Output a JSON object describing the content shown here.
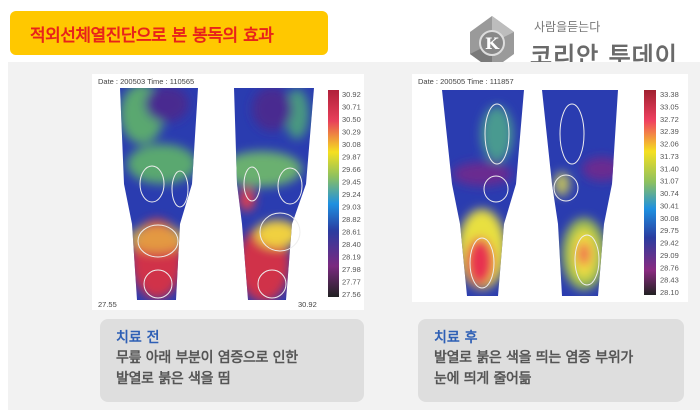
{
  "title": "적외선체열진단으로 본 봉독의 효과",
  "logo": {
    "slogan": "사람을듣는다",
    "name": "코리안 투데이",
    "icon": "k-logo-icon"
  },
  "colors": {
    "title_bg": "#ffc800",
    "title_text": "#e8231a",
    "caption_title": "#2e5fb5"
  },
  "before": {
    "header": "Date : 200503     Time : 110565",
    "scale": [
      "30.92",
      "30.71",
      "30.50",
      "30.29",
      "30.08",
      "29.87",
      "29.66",
      "29.45",
      "29.24",
      "29.03",
      "28.82",
      "28.61",
      "28.40",
      "28.19",
      "27.98",
      "27.77",
      "27.56"
    ],
    "min_label": "27.55",
    "max_label": "30.92",
    "caption_title": "치료 전",
    "caption_lines": [
      "무릎 아래 부분이 염증으로 인한",
      "발열로 붉은 색을 띰"
    ]
  },
  "after": {
    "header": "Date : 200505     Time : 111857",
    "scale": [
      "33.38",
      "33.05",
      "32.72",
      "32.39",
      "32.06",
      "31.73",
      "31.40",
      "31.07",
      "30.74",
      "30.41",
      "30.08",
      "29.75",
      "29.42",
      "29.09",
      "28.76",
      "28.43",
      "28.10"
    ],
    "caption_title": "치료 후",
    "caption_lines": [
      "발열로 붉은 색을 띄는 염증 부위가",
      "눈에 띄게 줄어듦"
    ]
  }
}
